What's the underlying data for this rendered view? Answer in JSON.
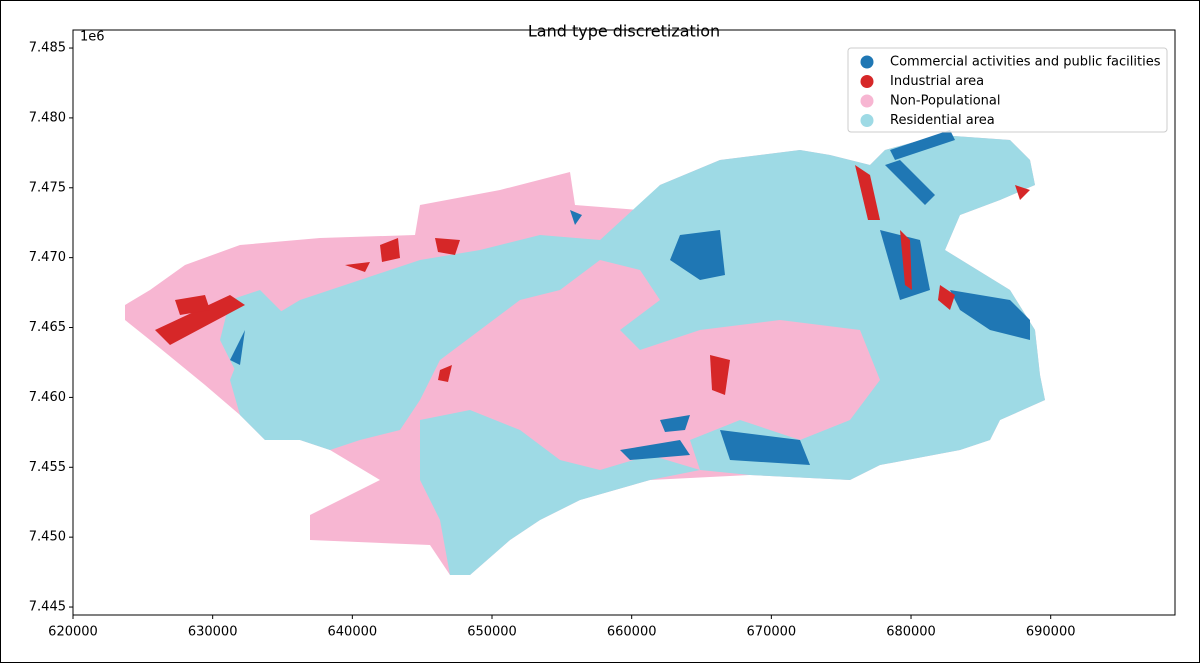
{
  "chart_data": {
    "type": "map",
    "title": "Land type discretization",
    "xlim": [
      620000,
      698900
    ],
    "ylim": [
      7444430,
      7486290
    ],
    "xticks": [
      620000,
      630000,
      640000,
      650000,
      660000,
      670000,
      680000,
      690000
    ],
    "yticks": [
      {
        "value": 7445000,
        "label": "7.445"
      },
      {
        "value": 7450000,
        "label": "7.450"
      },
      {
        "value": 7455000,
        "label": "7.455"
      },
      {
        "value": 7460000,
        "label": "7.460"
      },
      {
        "value": 7465000,
        "label": "7.465"
      },
      {
        "value": 7470000,
        "label": "7.470"
      },
      {
        "value": 7475000,
        "label": "7.475"
      },
      {
        "value": 7480000,
        "label": "7.480"
      },
      {
        "value": 7485000,
        "label": "7.485"
      }
    ],
    "y_offset_label": "1e6",
    "legend_position": "upper right",
    "legend": [
      {
        "name": "Commercial activities and public facilities",
        "color": "#1f77b4"
      },
      {
        "name": "Industrial area",
        "color": "#d62728"
      },
      {
        "name": "Non-Populational",
        "color": "#f7b6d2"
      },
      {
        "name": "Residential area",
        "color": "#9edae5"
      }
    ]
  }
}
